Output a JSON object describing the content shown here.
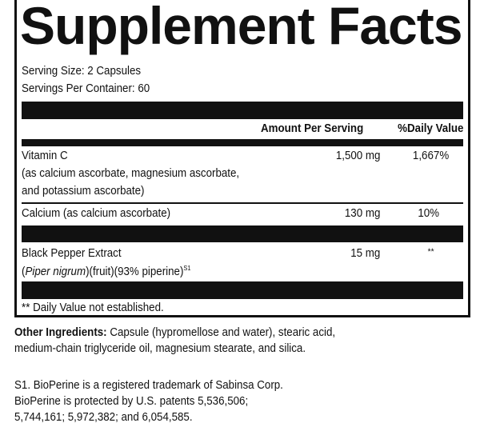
{
  "title": "Supplement Facts",
  "serving_size": "Serving Size: 2 Capsules",
  "servings_per_container": "Servings Per Container: 60",
  "header": {
    "amount": "Amount Per Serving",
    "dv": "%Daily Value"
  },
  "rows": [
    {
      "name": "Vitamin C",
      "detail1": "(as calcium ascorbate, magnesium ascorbate,",
      "detail2": "and potassium ascorbate)",
      "amount": "1,500 mg",
      "dv": "1,667%"
    },
    {
      "name": "Calcium (as calcium ascorbate)",
      "amount": "130 mg",
      "dv": "10%"
    },
    {
      "name": "Black Pepper Extract",
      "detail_italic": "Piper nigrum",
      "detail_rest": ")(fruit)(93% piperine)",
      "superscript": "S1",
      "amount": "15 mg",
      "dv": "**"
    }
  ],
  "footnote": "** Daily Value not established.",
  "other_ingredients": {
    "label": "Other Ingredients:",
    "line1": " Capsule (hypromellose and water), stearic acid,",
    "line2": "medium-chain triglyceride oil, magnesium stearate, and silica."
  },
  "trademark": {
    "line1": "S1. BioPerine is a registered trademark of Sabinsa Corp.",
    "line2": "BioPerine is protected by U.S. patents 5,536,506;",
    "line3": "5,744,161; 5,972,382; and 6,054,585."
  }
}
